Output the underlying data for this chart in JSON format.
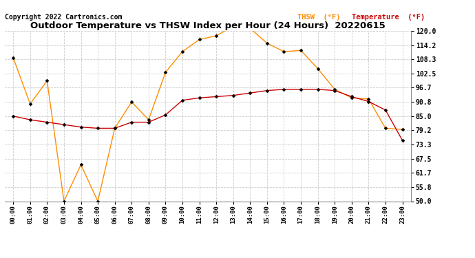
{
  "title": "Outdoor Temperature vs THSW Index per Hour (24 Hours)  20220615",
  "copyright": "Copyright 2022 Cartronics.com",
  "legend_thsw": "THSW  (°F)",
  "legend_temp": "Temperature  (°F)",
  "hours": [
    "00:00",
    "01:00",
    "02:00",
    "03:00",
    "04:00",
    "05:00",
    "06:00",
    "07:00",
    "08:00",
    "09:00",
    "10:00",
    "11:00",
    "12:00",
    "13:00",
    "14:00",
    "15:00",
    "16:00",
    "17:00",
    "18:00",
    "19:00",
    "20:00",
    "21:00",
    "22:00",
    "23:00"
  ],
  "thsw": [
    109.0,
    90.0,
    99.5,
    50.0,
    65.0,
    50.0,
    80.0,
    90.8,
    83.5,
    103.0,
    111.5,
    116.5,
    118.0,
    122.0,
    121.0,
    115.0,
    111.5,
    112.0,
    104.5,
    96.0,
    92.5,
    92.0,
    80.0,
    79.5
  ],
  "temperature": [
    85.0,
    83.5,
    82.5,
    81.5,
    80.5,
    80.0,
    80.0,
    82.5,
    82.5,
    85.5,
    91.5,
    92.5,
    93.0,
    93.5,
    94.5,
    95.5,
    96.0,
    96.0,
    96.0,
    95.5,
    93.0,
    91.0,
    87.5,
    75.0
  ],
  "thsw_color": "#FF8C00",
  "temp_color": "#CC0000",
  "background_color": "#FFFFFF",
  "grid_color": "#CCCCCC",
  "ylim": [
    50.0,
    120.0
  ],
  "yticks": [
    50.0,
    55.8,
    61.7,
    67.5,
    73.3,
    79.2,
    85.0,
    90.8,
    96.7,
    102.5,
    108.3,
    114.2,
    120.0
  ],
  "title_fontsize": 9.5,
  "copyright_fontsize": 7,
  "marker": "D",
  "marker_size": 2.5
}
